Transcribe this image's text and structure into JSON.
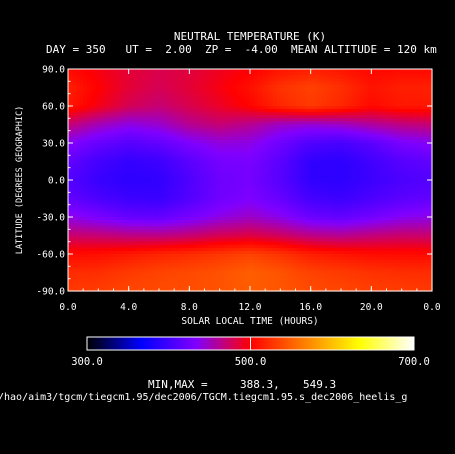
{
  "chart_data": {
    "type": "heatmap",
    "title": "NEUTRAL TEMPERATURE (K)",
    "subtitle": "DAY = 350   UT =  2.00  ZP =  -4.00  MEAN ALTITUDE = 120 km",
    "xlabel": "SOLAR LOCAL TIME (HOURS)",
    "ylabel": "LATITUDE (DEGREES GEOGRAPHIC)",
    "xlim": [
      0,
      24
    ],
    "ylim": [
      -90,
      90
    ],
    "x_ticks": [
      "0.0",
      "4.0",
      "8.0",
      "12.0",
      "16.0",
      "20.0",
      "0.0"
    ],
    "y_ticks": [
      "90.0",
      "60.0",
      "30.0",
      "0.0",
      "-30.0",
      "-60.0",
      "-90.0"
    ],
    "colorbar": {
      "min": 300.0,
      "max": 700.0,
      "ticks": [
        "300.0",
        "500.0",
        "700.0"
      ],
      "colors": [
        "#000000",
        "#0000ff",
        "#8000ff",
        "#ff0000",
        "#ff8000",
        "#ffff00",
        "#ffffff"
      ]
    },
    "minmax_label": "MIN,MAX =",
    "min_value": "388.3,",
    "max_value": "549.3",
    "lat": [
      -87.5,
      -75,
      -60,
      -45,
      -30,
      -15,
      0,
      15,
      30,
      45,
      60,
      75,
      87.5
    ],
    "lt": [
      0,
      2,
      4,
      6,
      8,
      10,
      12,
      14,
      16,
      18,
      20,
      22,
      24
    ],
    "values": [
      [
        528,
        530,
        535,
        538,
        540,
        543,
        548,
        544,
        538,
        535,
        532,
        530,
        528
      ],
      [
        522,
        524,
        530,
        535,
        538,
        542,
        549,
        543,
        534,
        530,
        526,
        524,
        522
      ],
      [
        505,
        507,
        512,
        518,
        522,
        528,
        534,
        526,
        515,
        510,
        506,
        505,
        505
      ],
      [
        472,
        470,
        466,
        465,
        470,
        478,
        482,
        475,
        465,
        462,
        468,
        472,
        472
      ],
      [
        440,
        430,
        420,
        418,
        428,
        440,
        448,
        438,
        422,
        418,
        426,
        436,
        440
      ],
      [
        418,
        406,
        398,
        396,
        410,
        425,
        432,
        420,
        402,
        398,
        406,
        414,
        418
      ],
      [
        410,
        396,
        390,
        392,
        408,
        424,
        428,
        412,
        392,
        390,
        398,
        406,
        410
      ],
      [
        418,
        402,
        394,
        398,
        414,
        428,
        430,
        414,
        392,
        390,
        400,
        412,
        418
      ],
      [
        436,
        420,
        412,
        418,
        432,
        442,
        440,
        424,
        408,
        404,
        414,
        430,
        436
      ],
      [
        470,
        452,
        440,
        446,
        462,
        470,
        462,
        448,
        444,
        448,
        458,
        466,
        470
      ],
      [
        512,
        495,
        478,
        470,
        480,
        490,
        502,
        520,
        530,
        520,
        505,
        512,
        512
      ],
      [
        516,
        500,
        486,
        478,
        486,
        496,
        508,
        526,
        534,
        524,
        510,
        516,
        516
      ],
      [
        506,
        496,
        486,
        480,
        484,
        492,
        500,
        512,
        518,
        512,
        504,
        506,
        506
      ]
    ]
  },
  "footer": {
    "path": "/hao/aim3/tgcm/tiegcm1.95/dec2006/TGCM.tiegcm1.95.s_dec2006_heelis_g"
  }
}
